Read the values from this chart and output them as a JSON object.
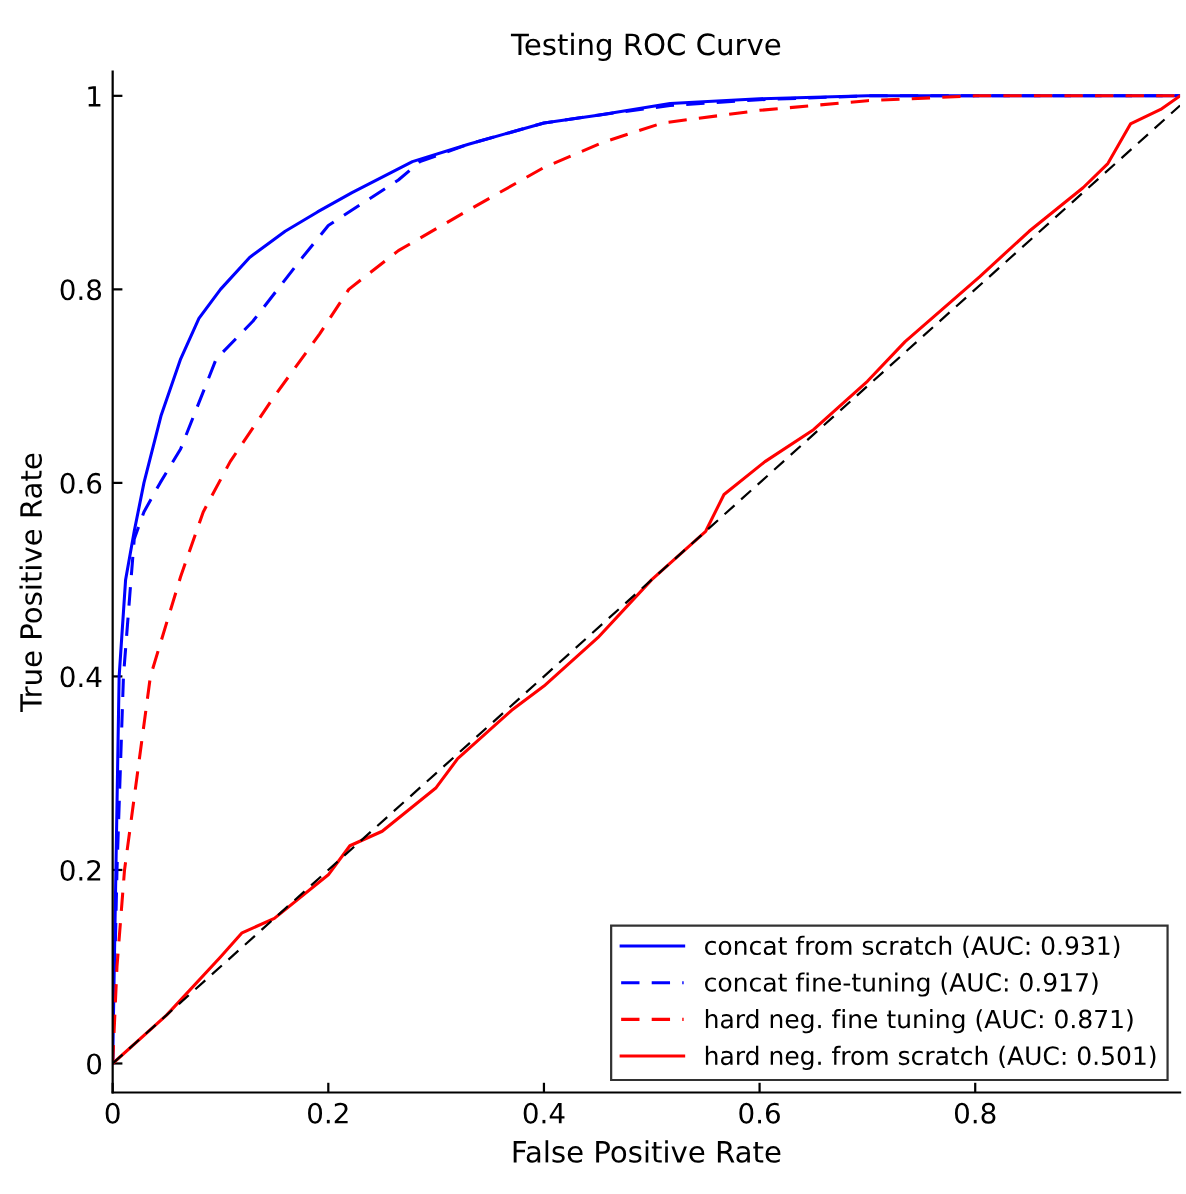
{
  "chart_data": {
    "type": "line",
    "title": "Testing ROC Curve",
    "xlabel": "False Positive Rate",
    "ylabel": "True Positive Rate",
    "xlim": [
      0,
      0.99
    ],
    "ylim": [
      -0.03,
      1.025
    ],
    "xticks": [
      0,
      0.2,
      0.4,
      0.6,
      0.8
    ],
    "yticks": [
      0,
      0.2,
      0.4,
      0.6,
      0.8,
      1
    ],
    "grid": false,
    "legend": "bottom right",
    "series": [
      {
        "name": "concat from scratch (AUC: 0.931)",
        "color": "#0000ff",
        "line_style": "solid",
        "x": [
          0,
          0.003,
          0.006,
          0.012,
          0.02,
          0.029,
          0.045,
          0.063,
          0.08,
          0.1,
          0.127,
          0.16,
          0.19,
          0.222,
          0.278,
          0.33,
          0.4,
          0.45,
          0.517,
          0.6,
          0.7,
          0.99
        ],
        "values": [
          0,
          0.2,
          0.4,
          0.5,
          0.55,
          0.6,
          0.67,
          0.728,
          0.77,
          0.8,
          0.833,
          0.86,
          0.88,
          0.9,
          0.932,
          0.95,
          0.972,
          0.98,
          0.992,
          0.997,
          1,
          1
        ]
      },
      {
        "name": "concat fine-tuning (AUC: 0.917)",
        "color": "#0000ff",
        "line_style": "dashed",
        "x": [
          0,
          0.004,
          0.01,
          0.017,
          0.02,
          0.029,
          0.044,
          0.063,
          0.096,
          0.13,
          0.176,
          0.2,
          0.265,
          0.285,
          0.33,
          0.4,
          0.45,
          0.517,
          0.6,
          0.7,
          0.99
        ],
        "values": [
          0,
          0.2,
          0.4,
          0.5,
          0.542,
          0.57,
          0.6,
          0.635,
          0.728,
          0.767,
          0.833,
          0.866,
          0.913,
          0.932,
          0.95,
          0.972,
          0.98,
          0.99,
          0.996,
          1,
          1
        ]
      },
      {
        "name": "hard neg. fine tuning (AUC: 0.871)",
        "color": "#ff0000",
        "line_style": "dashed",
        "x": [
          0,
          0.004,
          0.011,
          0.023,
          0.035,
          0.063,
          0.084,
          0.109,
          0.149,
          0.192,
          0.219,
          0.265,
          0.327,
          0.4,
          0.455,
          0.51,
          0.6,
          0.7,
          0.8,
          0.99
        ],
        "values": [
          0,
          0.1,
          0.2,
          0.3,
          0.4,
          0.503,
          0.57,
          0.622,
          0.688,
          0.754,
          0.8,
          0.84,
          0.88,
          0.926,
          0.952,
          0.972,
          0.985,
          0.995,
          1,
          1
        ]
      },
      {
        "name": "hard neg. from scratch (AUC: 0.501)",
        "color": "#ff0000",
        "line_style": "solid",
        "x": [
          0,
          0.05,
          0.1,
          0.12,
          0.15,
          0.2,
          0.22,
          0.25,
          0.3,
          0.32,
          0.37,
          0.4,
          0.45,
          0.5,
          0.55,
          0.567,
          0.605,
          0.65,
          0.7,
          0.735,
          0.804,
          0.85,
          0.9,
          0.923,
          0.944,
          0.972,
          0.99
        ],
        "values": [
          0,
          0.05,
          0.11,
          0.135,
          0.15,
          0.195,
          0.225,
          0.24,
          0.285,
          0.315,
          0.365,
          0.39,
          0.44,
          0.5,
          0.55,
          0.588,
          0.622,
          0.655,
          0.705,
          0.746,
          0.813,
          0.86,
          0.905,
          0.93,
          0.971,
          0.986,
          1
        ]
      },
      {
        "color": "#000000",
        "line_style": "dashed",
        "x": [
          0,
          0.99
        ],
        "values": [
          0,
          0.99
        ]
      }
    ]
  }
}
